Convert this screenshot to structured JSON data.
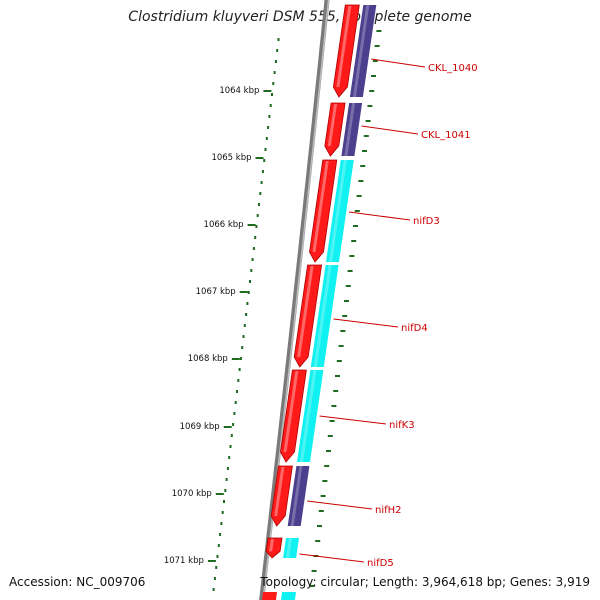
{
  "title": "Clostridium kluyveri DSM 555, complete genome",
  "accession_text": "Accession: NC_009706",
  "topology_text": "Topology: circular; Length: 3,964,618 bp; Genes: 3,919",
  "colors": {
    "backbone": "#7a7a7a",
    "tick": "#1f6b1f",
    "cds_forward": "#ff1a1a",
    "blast_purple": "#4b3f8e",
    "blast_cyan": "#12f1f1",
    "label": "#cc0000"
  },
  "scale_labels": [
    "1064 kbp",
    "1065 kbp",
    "1066 kbp",
    "1067 kbp",
    "1068 kbp",
    "1069 kbp",
    "1070 kbp",
    "1071 kbp"
  ],
  "genes": [
    {
      "label": "CKL_1040",
      "strand": "forward",
      "match": "purple"
    },
    {
      "label": "CKL_1041",
      "strand": "forward",
      "match": "purple"
    },
    {
      "label": "nifD3",
      "strand": "forward",
      "match": "cyan"
    },
    {
      "label": "nifD4",
      "strand": "forward",
      "match": "cyan"
    },
    {
      "label": "nifK3",
      "strand": "forward",
      "match": "cyan"
    },
    {
      "label": "nifH2",
      "strand": "forward",
      "match": "purple"
    },
    {
      "label": "nifD5",
      "strand": "forward",
      "match": "cyan"
    }
  ]
}
